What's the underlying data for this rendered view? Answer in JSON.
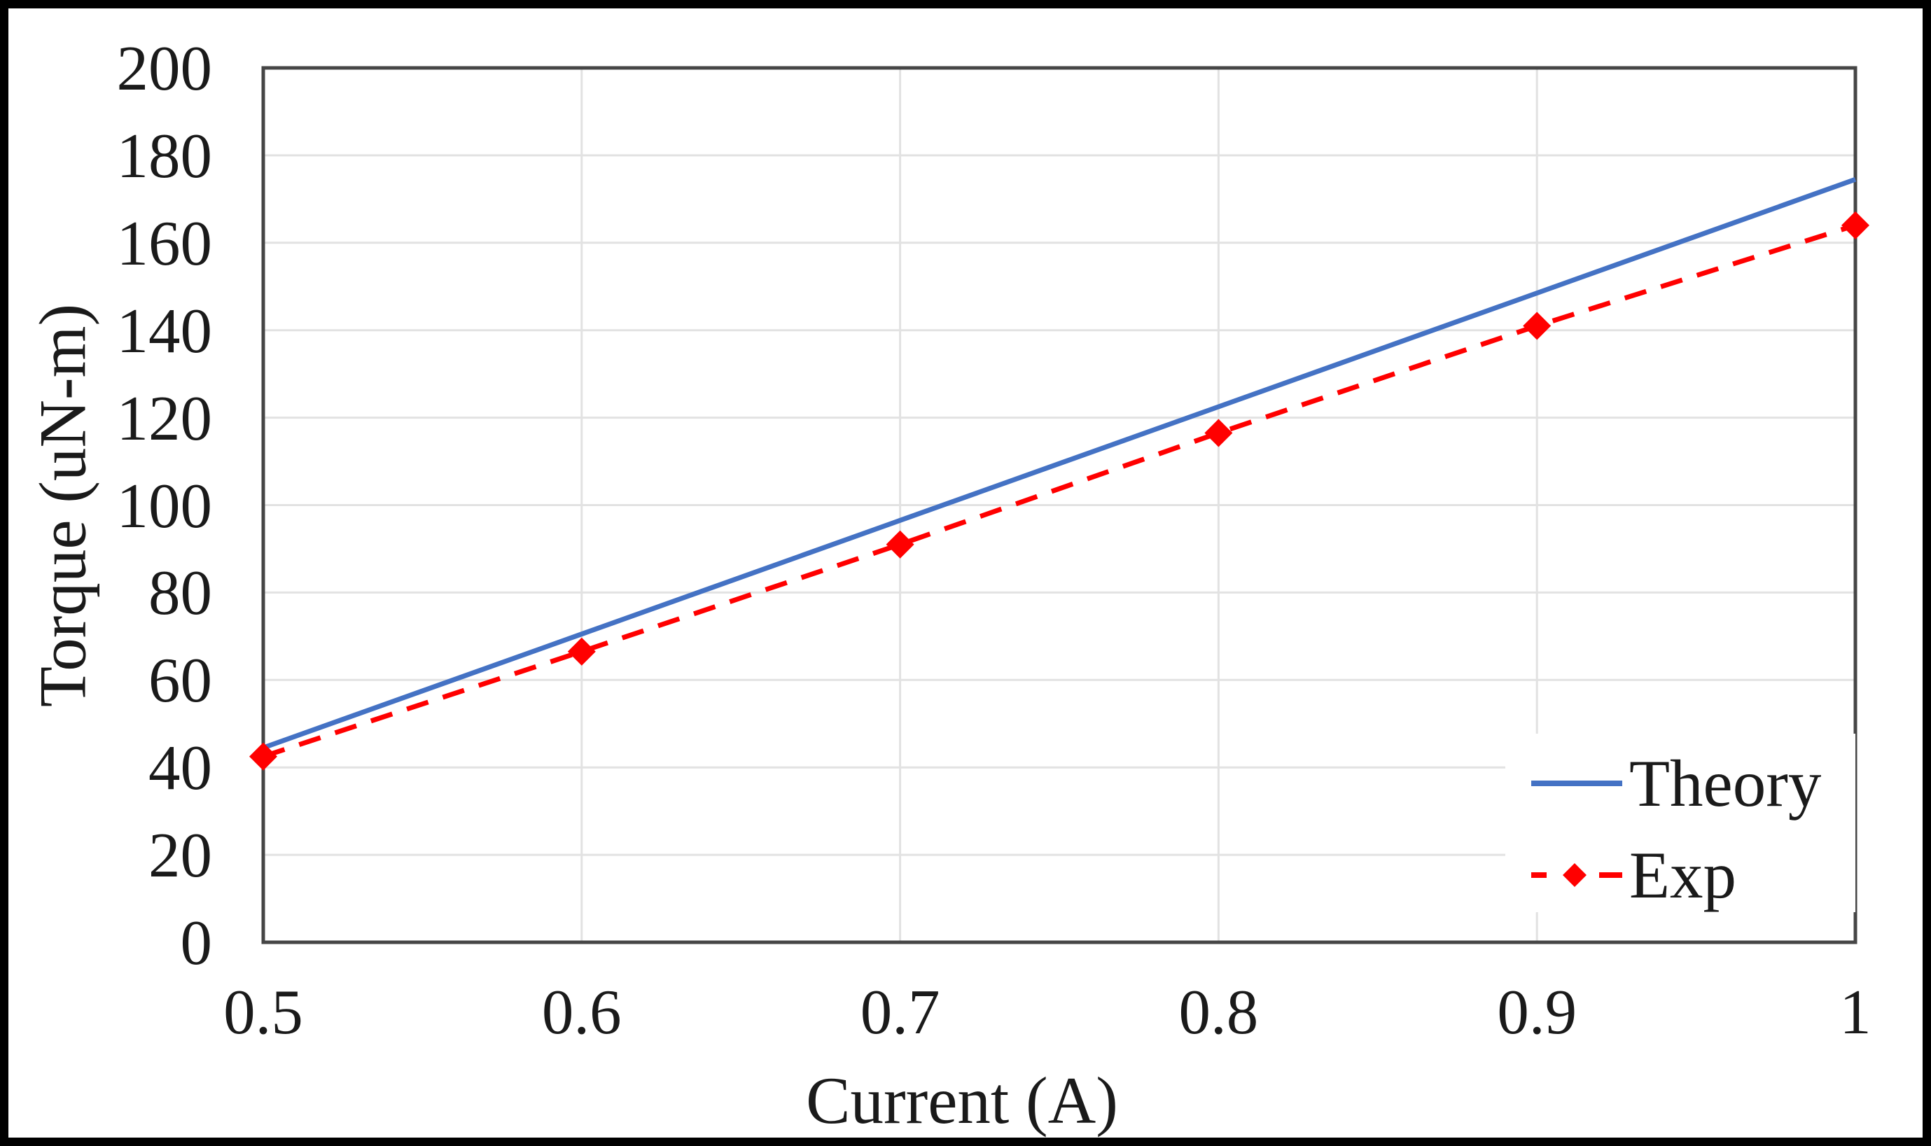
{
  "chart_data": {
    "type": "line",
    "title": "",
    "xlabel": "Current (A)",
    "ylabel": "Torque (uN-m)",
    "x": [
      0.5,
      0.6,
      0.7,
      0.8,
      0.9,
      1.0
    ],
    "x_tick_labels": [
      "0.5",
      "0.6",
      "0.7",
      "0.8",
      "0.9",
      "1"
    ],
    "y_tick_values": [
      0,
      20,
      40,
      60,
      80,
      100,
      120,
      140,
      160,
      180,
      200
    ],
    "xlim": [
      0.5,
      1.0
    ],
    "ylim": [
      0,
      200
    ],
    "grid": true,
    "legend_position": "inside-bottom-right",
    "series": [
      {
        "name": "Theory",
        "color": "#4472C4",
        "line_style": "solid",
        "marker": "none",
        "values": [
          44.5,
          70.5,
          96.5,
          122.5,
          148.5,
          174.5
        ]
      },
      {
        "name": "Exp",
        "color": "#FF0000",
        "line_style": "dashed",
        "marker": "diamond",
        "values": [
          42.5,
          66.5,
          91,
          116.5,
          141,
          164
        ]
      }
    ],
    "colors": {
      "gridline": "#E2E2E2",
      "plot_border": "#464646",
      "outer_border": "#000000",
      "background": "#FFFFFF",
      "text": "#1A1A1A"
    }
  }
}
